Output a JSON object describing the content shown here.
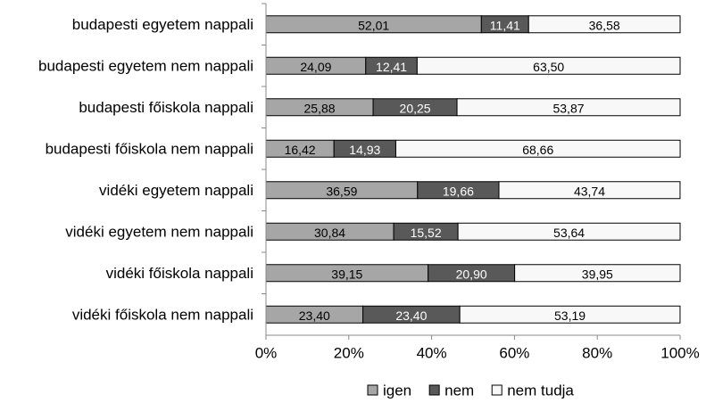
{
  "chart_data": {
    "type": "bar",
    "orientation": "horizontal",
    "stacked": true,
    "categories": [
      "budapesti egyetem nappali",
      "budapesti egyetem nem nappali",
      "budapesti főiskola nappali",
      "budapesti főiskola nem nappali",
      "vidéki egyetem nappali",
      "vidéki egyetem nem nappali",
      "vidéki főiskola nappali",
      "vidéki főiskola nem nappali"
    ],
    "series": [
      {
        "name": "igen",
        "color": "#a6a6a6",
        "text_color": "#000000",
        "values": [
          52.01,
          24.09,
          25.88,
          16.42,
          36.59,
          30.84,
          39.15,
          23.4
        ],
        "labels": [
          "52,01",
          "24,09",
          "25,88",
          "16,42",
          "36,59",
          "30,84",
          "39,15",
          "23,40"
        ]
      },
      {
        "name": "nem",
        "color": "#595959",
        "text_color": "#ffffff",
        "values": [
          11.41,
          12.41,
          20.25,
          14.93,
          19.66,
          15.52,
          20.9,
          23.4
        ],
        "labels": [
          "11,41",
          "12,41",
          "20,25",
          "14,93",
          "19,66",
          "15,52",
          "20,90",
          "23,40"
        ]
      },
      {
        "name": "nem tudja",
        "color": "#f8f8f8",
        "text_color": "#000000",
        "values": [
          36.58,
          63.5,
          53.87,
          68.66,
          43.74,
          53.64,
          39.95,
          53.19
        ],
        "labels": [
          "36,58",
          "63,50",
          "53,87",
          "68,66",
          "43,74",
          "53,64",
          "39,95",
          "53,19"
        ]
      }
    ],
    "xlim": [
      0,
      100
    ],
    "x_ticks": [
      "0%",
      "20%",
      "40%",
      "60%",
      "80%",
      "100%"
    ],
    "legend_position": "bottom-right",
    "grid": false
  }
}
